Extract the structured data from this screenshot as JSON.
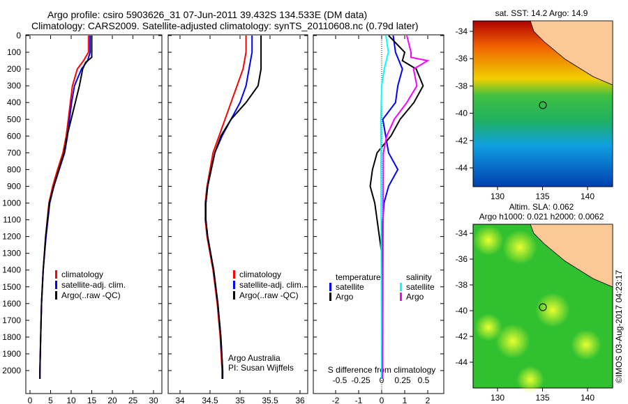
{
  "title_line1": "Argo profile: csiro 5903626_31 07-Jun-2011 39.432S 134.533E (DM data)",
  "title_line2": "Climatology: CARS2009. Satellite-adjusted climatology: synTS_20110608.nc (0.79d later)",
  "chart_data": [
    {
      "type": "line",
      "name": "temperature",
      "xlabel": "temperature (deg C)",
      "ylabel": "depth",
      "xlim": [
        -1,
        31
      ],
      "ylim": [
        2060,
        0
      ],
      "xticks": [
        0,
        5,
        10,
        15,
        20,
        25,
        30
      ],
      "yticks": [
        0,
        100,
        200,
        300,
        400,
        500,
        600,
        700,
        800,
        900,
        1000,
        1100,
        1200,
        1300,
        1400,
        1500,
        1600,
        1700,
        1800,
        1900,
        2000
      ],
      "legend": [
        "climatology",
        "satellite-adj. clim.",
        "Argo(..raw -QC)"
      ],
      "series": [
        {
          "name": "climatology",
          "color": "#ff0000",
          "depth": [
            0,
            100,
            150,
            200,
            300,
            400,
            500,
            600,
            700,
            800,
            900,
            1000,
            1200,
            1400,
            1600,
            1800,
            2000,
            2050
          ],
          "values": [
            14.2,
            14.2,
            13,
            11.5,
            10.3,
            9.8,
            9.3,
            8.8,
            8,
            6.7,
            5.5,
            4.6,
            3.8,
            3.2,
            2.8,
            2.6,
            2.4,
            2.4
          ]
        },
        {
          "name": "satellite-adj. clim.",
          "color": "#0000ff",
          "depth": [
            0,
            100,
            150,
            200,
            300,
            400,
            500,
            600,
            700,
            800,
            900,
            1000,
            1200,
            1400,
            1600,
            1800,
            2000,
            2050
          ],
          "values": [
            14.6,
            14.6,
            14,
            12.5,
            10.8,
            10.1,
            9.6,
            9.1,
            8.4,
            7.1,
            5.8,
            4.8,
            3.9,
            3.2,
            2.8,
            2.6,
            2.4,
            2.4
          ]
        },
        {
          "name": "Argo(..raw -QC)",
          "color": "#000000",
          "depth": [
            0,
            130,
            160,
            200,
            300,
            400,
            500,
            600,
            700,
            800,
            900,
            1000,
            1200,
            1400,
            1600,
            1800,
            2000,
            2050
          ],
          "values": [
            15,
            15,
            13.5,
            12.8,
            12,
            11,
            10,
            9,
            8.3,
            7,
            5.8,
            4.7,
            3.8,
            3.2,
            2.8,
            2.6,
            2.4,
            2.4
          ]
        }
      ]
    },
    {
      "type": "line",
      "name": "salinity",
      "xlabel": "salinity",
      "xlim": [
        33.9,
        36.1
      ],
      "ylim": [
        2060,
        0
      ],
      "xticks": [
        34,
        34.5,
        35,
        35.5,
        36
      ],
      "legend": [
        "climatology",
        "satellite-adj. clim.",
        "Argo(..raw -QC)"
      ],
      "annotation": [
        "Argo Australia",
        "PI: Susan Wijffels"
      ],
      "series": [
        {
          "name": "climatology",
          "color": "#ff0000",
          "depth": [
            0,
            100,
            200,
            300,
            400,
            500,
            600,
            700,
            800,
            900,
            1000,
            1100,
            1200,
            1400,
            1600,
            1800,
            2000,
            2050
          ],
          "values": [
            35.1,
            35.1,
            35.05,
            34.95,
            34.85,
            34.75,
            34.65,
            34.55,
            34.5,
            34.45,
            34.42,
            34.42,
            34.45,
            34.55,
            34.62,
            34.67,
            34.7,
            34.7
          ]
        },
        {
          "name": "satellite-adj. clim.",
          "color": "#0000ff",
          "depth": [
            0,
            100,
            200,
            300,
            400,
            500,
            600,
            700,
            800,
            900,
            1000,
            1100,
            1200,
            1400,
            1600,
            1800,
            2000,
            2050
          ],
          "values": [
            35.2,
            35.2,
            35.15,
            35.1,
            35.0,
            34.85,
            34.7,
            34.58,
            34.52,
            34.46,
            34.43,
            34.43,
            34.46,
            34.56,
            34.63,
            34.68,
            34.71,
            34.71
          ]
        },
        {
          "name": "Argo(..raw -QC)",
          "color": "#000000",
          "depth": [
            0,
            100,
            200,
            300,
            400,
            500,
            600,
            700,
            800,
            900,
            1000,
            1100,
            1200,
            1400,
            1600,
            1800,
            2000,
            2050
          ],
          "values": [
            35.35,
            35.35,
            35.35,
            35.3,
            35.1,
            34.85,
            34.68,
            34.58,
            34.52,
            34.46,
            34.43,
            34.43,
            34.46,
            34.56,
            34.63,
            34.68,
            34.71,
            34.71
          ]
        }
      ]
    },
    {
      "type": "line",
      "name": "differences",
      "xlabel": "T difference from climatology",
      "xlabel2": "S difference from climatology",
      "xlim": [
        -3,
        2.7
      ],
      "ylim": [
        2060,
        0
      ],
      "xticks": [
        -2,
        -1,
        0,
        1,
        2
      ],
      "xticks2": [
        -0.5,
        -0.25,
        0,
        0.25,
        0.5
      ],
      "legend": {
        "temperature": [
          "satellite",
          "Argo"
        ],
        "salinity": [
          "satellite",
          "Argo"
        ],
        "temperature_header": "temperature",
        "salinity_header": "salinity"
      },
      "series": [
        {
          "name": "T satellite",
          "color": "#0000ff",
          "axis": "T",
          "depth": [
            0,
            100,
            200,
            300,
            400,
            500,
            700,
            800,
            900,
            1000,
            1200,
            2050
          ],
          "values": [
            0.5,
            0.6,
            0.9,
            0.7,
            0.6,
            0.05,
            0.3,
            0.7,
            0.3,
            0.1,
            0,
            0
          ]
        },
        {
          "name": "T Argo",
          "color": "#000000",
          "axis": "T",
          "depth": [
            0,
            100,
            150,
            200,
            300,
            400,
            500,
            600,
            700,
            800,
            900,
            1000,
            1200,
            1300,
            2050
          ],
          "values": [
            0.3,
            1,
            0.9,
            1.5,
            1.8,
            1.4,
            0.8,
            0.4,
            -0.2,
            -0.4,
            -0.5,
            -0.3,
            -0.1,
            0,
            0
          ]
        },
        {
          "name": "S satellite",
          "color": "#00ffff",
          "axis": "S",
          "depth": [
            0,
            100,
            200,
            300,
            500,
            2050
          ],
          "values": [
            0.05,
            0.08,
            0.03,
            0,
            -0.01,
            0
          ]
        },
        {
          "name": "S Argo",
          "color": "#ff00ff",
          "axis": "S",
          "depth": [
            0,
            100,
            130,
            150,
            200,
            300,
            400,
            500,
            600,
            700,
            2050
          ],
          "values": [
            0.3,
            0.35,
            0.35,
            0.55,
            0.38,
            0.42,
            0.3,
            0.15,
            0.06,
            0.02,
            0.01
          ]
        }
      ]
    }
  ],
  "map1": {
    "title": "sat. SST: 14.2  Argo: 14.9",
    "lat_ticks": [
      "-34",
      "-36",
      "-38",
      "-40",
      "-42",
      "-44"
    ],
    "lon_ticks": [
      "130",
      "135",
      "140"
    ]
  },
  "map2": {
    "title1": "Altim. SLA: 0.062",
    "title2": "Argo h1000: 0.021  h2000: 0.0062",
    "lat_ticks": [
      "-34",
      "-36",
      "-38",
      "-40",
      "-42",
      "-44"
    ],
    "lon_ticks": [
      "130",
      "135",
      "140"
    ]
  },
  "credit": "©IMOS 03-Aug-2017 04:23:17"
}
